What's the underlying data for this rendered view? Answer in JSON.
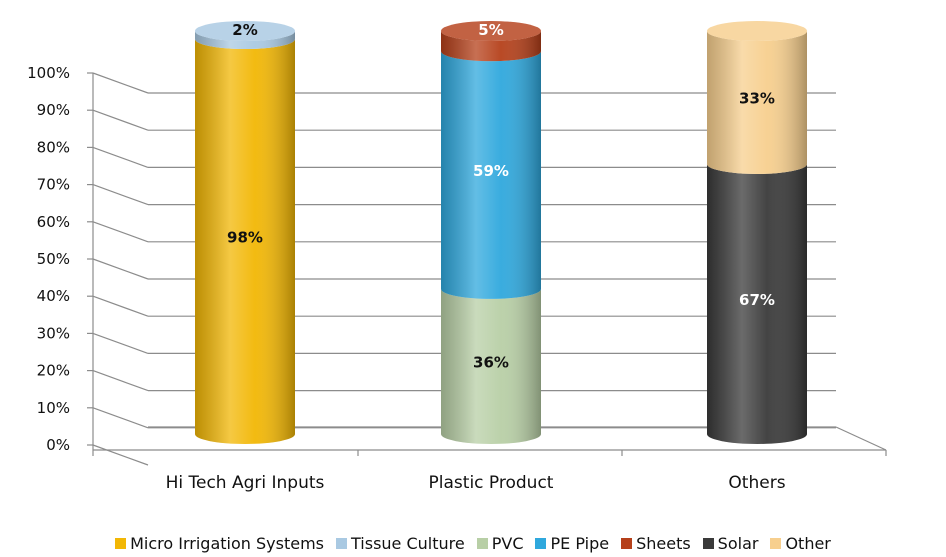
{
  "chart_data": {
    "type": "bar",
    "stacked": true,
    "percent_stacked": true,
    "three_d": true,
    "bar_shape": "cylinder",
    "categories": [
      "Hi Tech Agri Inputs",
      "Plastic Product",
      "Others"
    ],
    "yticks": [
      "0%",
      "10%",
      "20%",
      "30%",
      "40%",
      "50%",
      "60%",
      "70%",
      "80%",
      "90%",
      "100%"
    ],
    "ylim": [
      0,
      100
    ],
    "grid": true,
    "legend_position": "bottom",
    "series": [
      {
        "name": "Micro Irrigation Systems",
        "color": "#F2B705",
        "label_color": "#111111",
        "values": [
          98,
          0,
          0
        ],
        "labels": [
          "98%",
          "",
          ""
        ]
      },
      {
        "name": "Tissue Culture",
        "color": "#A9C9E2",
        "label_color": "#111111",
        "values": [
          2,
          0,
          0
        ],
        "labels": [
          "2%",
          "",
          ""
        ]
      },
      {
        "name": "PVC",
        "color": "#B8CFA6",
        "label_color": "#111111",
        "values": [
          0,
          36,
          0
        ],
        "labels": [
          "",
          "36%",
          ""
        ]
      },
      {
        "name": "PE Pipe",
        "color": "#2FA8DD",
        "label_color": "#ffffff",
        "values": [
          0,
          59,
          0
        ],
        "labels": [
          "",
          "59%",
          ""
        ]
      },
      {
        "name": "Sheets",
        "color": "#B5401A",
        "label_color": "#ffffff",
        "values": [
          0,
          5,
          0
        ],
        "labels": [
          "",
          "5%",
          ""
        ]
      },
      {
        "name": "Solar",
        "color": "#3A3A3A",
        "label_color": "#ffffff",
        "values": [
          0,
          0,
          67
        ],
        "labels": [
          "",
          "",
          "67%"
        ]
      },
      {
        "name": "Other",
        "color": "#F7CF8E",
        "label_color": "#111111",
        "values": [
          0,
          0,
          33
        ],
        "labels": [
          "",
          "",
          "33%"
        ]
      }
    ]
  }
}
